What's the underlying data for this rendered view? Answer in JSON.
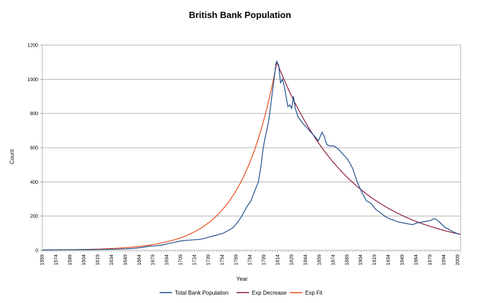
{
  "chart_data": {
    "type": "line",
    "title": "British Bank Population",
    "xlabel": "Year",
    "ylabel": "Count",
    "xlim": [
      1559,
      2012
    ],
    "ylim": [
      0,
      1200
    ],
    "y_ticks": [
      0,
      200,
      400,
      600,
      800,
      1000,
      1200
    ],
    "x_tick_labels": [
      "1559",
      "1574",
      "1589",
      "1604",
      "1619",
      "1634",
      "1649",
      "1664",
      "1679",
      "1694",
      "1709",
      "1724",
      "1739",
      "1754",
      "1769",
      "1784",
      "1799",
      "1814",
      "1829",
      "1844",
      "1859",
      "1874",
      "1889",
      "1904",
      "1919",
      "1934",
      "1949",
      "1964",
      "1979",
      "1994",
      "2009"
    ],
    "grid": "horizontal",
    "legend_position": "bottom",
    "series": [
      {
        "name": "Total Bank Population",
        "color": "#1f4e8c",
        "points": [
          [
            1559,
            2
          ],
          [
            1570,
            2
          ],
          [
            1580,
            3
          ],
          [
            1590,
            3
          ],
          [
            1600,
            4
          ],
          [
            1610,
            4
          ],
          [
            1620,
            5
          ],
          [
            1630,
            6
          ],
          [
            1640,
            7
          ],
          [
            1650,
            9
          ],
          [
            1660,
            12
          ],
          [
            1665,
            16
          ],
          [
            1670,
            20
          ],
          [
            1675,
            24
          ],
          [
            1680,
            25
          ],
          [
            1685,
            28
          ],
          [
            1690,
            32
          ],
          [
            1695,
            38
          ],
          [
            1700,
            45
          ],
          [
            1705,
            50
          ],
          [
            1710,
            55
          ],
          [
            1715,
            58
          ],
          [
            1720,
            60
          ],
          [
            1725,
            62
          ],
          [
            1730,
            64
          ],
          [
            1735,
            70
          ],
          [
            1740,
            78
          ],
          [
            1745,
            85
          ],
          [
            1750,
            92
          ],
          [
            1755,
            100
          ],
          [
            1760,
            115
          ],
          [
            1765,
            130
          ],
          [
            1770,
            160
          ],
          [
            1775,
            200
          ],
          [
            1780,
            250
          ],
          [
            1785,
            290
          ],
          [
            1790,
            360
          ],
          [
            1793,
            400
          ],
          [
            1796,
            500
          ],
          [
            1798,
            590
          ],
          [
            1800,
            650
          ],
          [
            1802,
            700
          ],
          [
            1804,
            750
          ],
          [
            1806,
            830
          ],
          [
            1808,
            920
          ],
          [
            1810,
            1000
          ],
          [
            1812,
            1090
          ],
          [
            1813,
            1105
          ],
          [
            1815,
            1080
          ],
          [
            1817,
            980
          ],
          [
            1819,
            1000
          ],
          [
            1821,
            960
          ],
          [
            1823,
            900
          ],
          [
            1825,
            840
          ],
          [
            1827,
            850
          ],
          [
            1829,
            830
          ],
          [
            1831,
            900
          ],
          [
            1833,
            830
          ],
          [
            1836,
            780
          ],
          [
            1840,
            750
          ],
          [
            1845,
            720
          ],
          [
            1850,
            690
          ],
          [
            1855,
            660
          ],
          [
            1858,
            640
          ],
          [
            1862,
            690
          ],
          [
            1864,
            670
          ],
          [
            1867,
            620
          ],
          [
            1870,
            610
          ],
          [
            1875,
            610
          ],
          [
            1880,
            590
          ],
          [
            1885,
            560
          ],
          [
            1890,
            530
          ],
          [
            1895,
            480
          ],
          [
            1900,
            400
          ],
          [
            1905,
            340
          ],
          [
            1910,
            290
          ],
          [
            1915,
            275
          ],
          [
            1920,
            240
          ],
          [
            1925,
            220
          ],
          [
            1930,
            200
          ],
          [
            1935,
            185
          ],
          [
            1940,
            175
          ],
          [
            1945,
            165
          ],
          [
            1950,
            160
          ],
          [
            1955,
            155
          ],
          [
            1960,
            150
          ],
          [
            1965,
            160
          ],
          [
            1970,
            165
          ],
          [
            1975,
            170
          ],
          [
            1980,
            175
          ],
          [
            1983,
            185
          ],
          [
            1986,
            180
          ],
          [
            1990,
            160
          ],
          [
            1995,
            135
          ],
          [
            2000,
            120
          ],
          [
            2005,
            105
          ],
          [
            2010,
            95
          ]
        ]
      },
      {
        "name": "Exp Decrease",
        "color": "#8b1a3a",
        "model": {
          "peak_year": 1813,
          "peak_value": 1100,
          "end_year": 2012,
          "end_value": 93
        }
      },
      {
        "name": "Exp Fit",
        "color": "#e84a1a",
        "model": {
          "start_year": 1559,
          "end_year": 1813,
          "peak_value": 1100,
          "rate": 0.026
        }
      }
    ]
  }
}
